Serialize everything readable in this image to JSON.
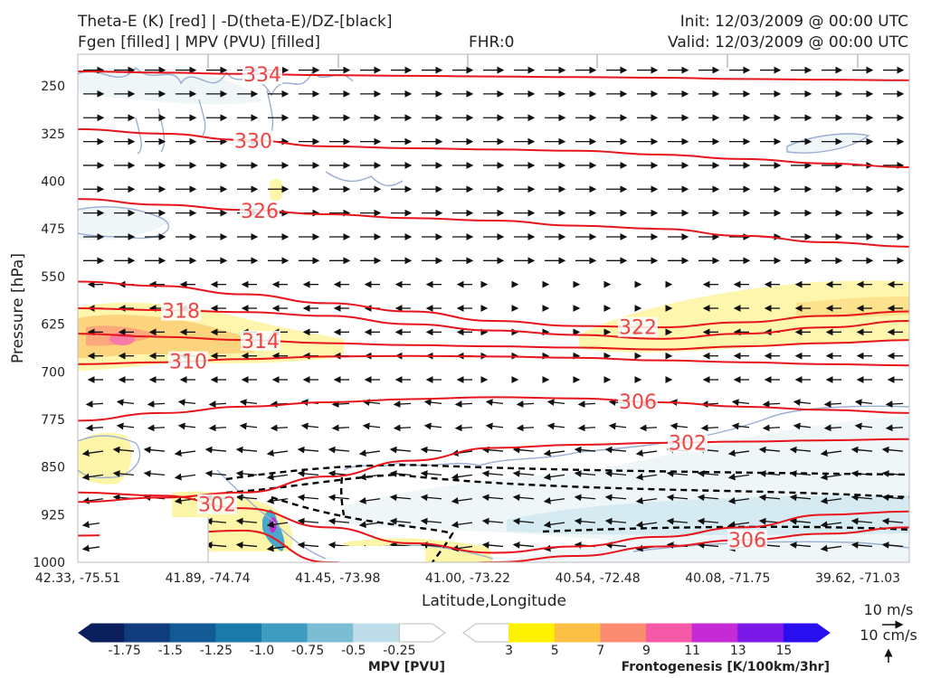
{
  "header": {
    "left_line1": "Theta-E (K) [red] | -D(theta-E)/DZ-[black]",
    "left_line2": "Fgen [filled] | MPV (PVU) [filled]",
    "center": "FHR:0",
    "right_line1": "Init: 12/03/2009 @ 00:00 UTC",
    "right_line2": "Valid: 12/03/2009 @ 00:00 UTC"
  },
  "chart_data": {
    "type": "cross-section",
    "xlabel": "Latitude,Longitude",
    "ylabel": "Pressure [hPa]",
    "y_ticks": [
      "250",
      "325",
      "400",
      "475",
      "550",
      "625",
      "700",
      "775",
      "850",
      "925",
      "1000"
    ],
    "ylim": [
      1000,
      200
    ],
    "x_ticks": [
      "42.33, -75.51",
      "41.89, -74.74",
      "41.45, -73.98",
      "41.00, -73.22",
      "40.54, -72.48",
      "40.08, -71.75",
      "39.62, -71.03"
    ],
    "theta_e_contours": [
      {
        "label": "334",
        "values": [
          227,
          229,
          231,
          233,
          234,
          235,
          236,
          237,
          239,
          240,
          241
        ]
      },
      {
        "label": "330",
        "values": [
          318,
          325,
          335,
          345,
          348,
          350,
          352,
          358,
          365,
          372,
          378
        ]
      },
      {
        "label": "326",
        "values": [
          428,
          437,
          445,
          452,
          458,
          462,
          470,
          475,
          486,
          496,
          503
        ]
      },
      {
        "label": "322",
        "values": [
          558,
          565,
          578,
          592,
          605,
          620,
          628,
          630,
          622,
          612,
          605
        ]
      },
      {
        "label": "318",
        "values": [
          600,
          603,
          606,
          612,
          625,
          635,
          642,
          648,
          640,
          630,
          620
        ]
      },
      {
        "label": "314",
        "values": [
          640,
          645,
          650,
          655,
          658,
          660,
          662,
          665,
          660,
          655,
          650
        ]
      },
      {
        "label": "310",
        "values": [
          688,
          685,
          680,
          676,
          675,
          676,
          678,
          682,
          685,
          688,
          690
        ]
      },
      {
        "label": "306",
        "values": [
          777,
          765,
          755,
          748,
          743,
          740,
          742,
          748,
          755,
          760,
          765
        ]
      },
      {
        "label": "302",
        "values": [
          905,
          898,
          890,
          865,
          840,
          820,
          815,
          812,
          810,
          808,
          806
        ]
      },
      {
        "label": "302",
        "values": [
          890,
          895,
          915,
          945,
          970,
          985,
          975,
          960,
          945,
          925,
          920
        ]
      },
      {
        "label": "306",
        "values": [
          958,
          955,
          950,
          1000,
          1010,
          1000,
          990,
          975,
          965,
          955,
          945
        ]
      }
    ],
    "mpv_colorbar": {
      "title": "MPV [PVU]",
      "ticks": [
        "-1.75",
        "-1.5",
        "-1.25",
        "-1.0",
        "-0.75",
        "-0.5",
        "-0.25"
      ],
      "colors": [
        "#0b1f5c",
        "#0e3c7c",
        "#135a94",
        "#1c7aa8",
        "#3e9cc0",
        "#7cbdd4",
        "#bfdde8",
        "#ffffff"
      ]
    },
    "fgen_colorbar": {
      "title": "Frontogenesis [K/100km/3hr]",
      "ticks": [
        "3",
        "5",
        "7",
        "9",
        "11",
        "13",
        "15"
      ],
      "colors": [
        "#ffffff",
        "#fff200",
        "#fcc045",
        "#fb8c72",
        "#f55aa8",
        "#c42bd4",
        "#7b1ae8",
        "#2a10f0"
      ]
    },
    "quiver_key": {
      "h_label": "10 m/s",
      "v_label": "10 cm/s"
    }
  }
}
